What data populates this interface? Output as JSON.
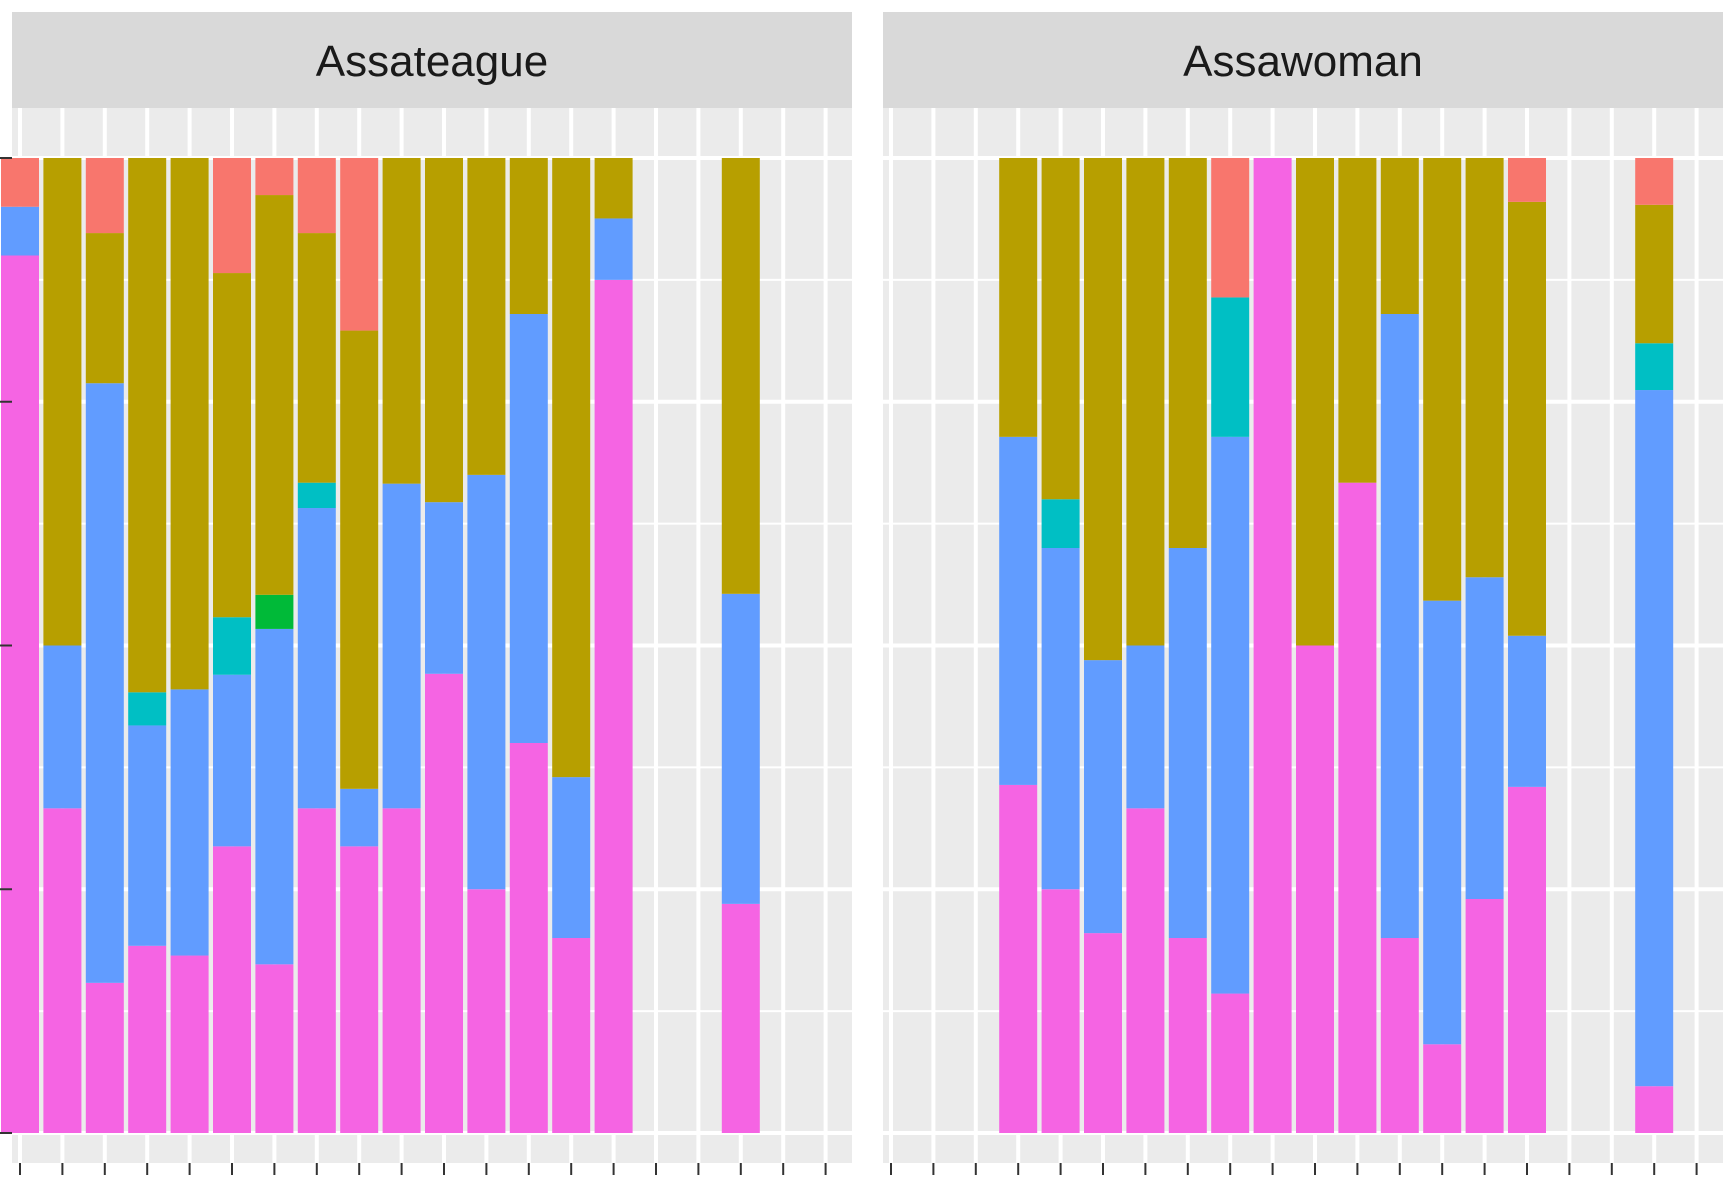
{
  "chart_data": {
    "type": "bar",
    "stacked": true,
    "orientation": "vertical",
    "facets": [
      "Assateague",
      "Assawoman"
    ],
    "segment_order_bottom_to_top": [
      "magenta",
      "blue",
      "cyan",
      "green",
      "olive",
      "red"
    ],
    "colors": {
      "red": "#F8766D",
      "olive": "#B79F00",
      "green": "#00BA38",
      "cyan": "#00BFC4",
      "blue": "#619CFF",
      "magenta": "#F564E3"
    },
    "ylim": [
      0,
      1
    ],
    "grid": true,
    "legend": "none",
    "x_ticks": 20,
    "panels": [
      {
        "title": "Assateague",
        "bars": [
          {
            "slot": 1,
            "magenta": 0.9,
            "blue": 0.05,
            "cyan": 0,
            "green": 0,
            "olive": 0,
            "red": 0.05
          },
          {
            "slot": 2,
            "magenta": 0.333,
            "blue": 0.167,
            "cyan": 0,
            "green": 0,
            "olive": 0.5,
            "red": 0
          },
          {
            "slot": 3,
            "magenta": 0.154,
            "blue": 0.615,
            "cyan": 0,
            "green": 0,
            "olive": 0.154,
            "red": 0.077
          },
          {
            "slot": 4,
            "magenta": 0.192,
            "blue": 0.226,
            "cyan": 0.034,
            "green": 0,
            "olive": 0.548,
            "red": 0
          },
          {
            "slot": 5,
            "magenta": 0.182,
            "blue": 0.273,
            "cyan": 0,
            "green": 0,
            "olive": 0.545,
            "red": 0
          },
          {
            "slot": 6,
            "magenta": 0.294,
            "blue": 0.176,
            "cyan": 0.059,
            "green": 0,
            "olive": 0.353,
            "red": 0.118
          },
          {
            "slot": 7,
            "magenta": 0.173,
            "blue": 0.344,
            "cyan": 0,
            "green": 0.035,
            "olive": 0.41,
            "red": 0.038
          },
          {
            "slot": 8,
            "magenta": 0.333,
            "blue": 0.308,
            "cyan": 0.026,
            "green": 0,
            "olive": 0.256,
            "red": 0.077
          },
          {
            "slot": 9,
            "magenta": 0.294,
            "blue": 0.059,
            "cyan": 0,
            "green": 0,
            "olive": 0.47,
            "red": 0.177
          },
          {
            "slot": 10,
            "magenta": 0.333,
            "blue": 0.333,
            "cyan": 0,
            "green": 0,
            "olive": 0.334,
            "red": 0
          },
          {
            "slot": 11,
            "magenta": 0.471,
            "blue": 0.176,
            "cyan": 0,
            "green": 0,
            "olive": 0.353,
            "red": 0
          },
          {
            "slot": 12,
            "magenta": 0.25,
            "blue": 0.425,
            "cyan": 0,
            "green": 0,
            "olive": 0.325,
            "red": 0
          },
          {
            "slot": 13,
            "magenta": 0.4,
            "blue": 0.44,
            "cyan": 0,
            "green": 0,
            "olive": 0.16,
            "red": 0
          },
          {
            "slot": 14,
            "magenta": 0.2,
            "blue": 0.165,
            "cyan": 0,
            "green": 0,
            "olive": 0.635,
            "red": 0
          },
          {
            "slot": 15,
            "magenta": 0.875,
            "blue": 0.063,
            "cyan": 0,
            "green": 0,
            "olive": 0.062,
            "red": 0
          },
          {
            "slot": 18,
            "magenta": 0.235,
            "blue": 0.318,
            "cyan": 0,
            "green": 0,
            "olive": 0.447,
            "red": 0
          }
        ]
      },
      {
        "title": "Assawoman",
        "bars": [
          {
            "slot": 4,
            "magenta": 0.357,
            "blue": 0.357,
            "cyan": 0,
            "green": 0,
            "olive": 0.286,
            "red": 0
          },
          {
            "slot": 5,
            "magenta": 0.25,
            "blue": 0.35,
            "cyan": 0.05,
            "green": 0,
            "olive": 0.35,
            "red": 0
          },
          {
            "slot": 6,
            "magenta": 0.205,
            "blue": 0.28,
            "cyan": 0,
            "green": 0,
            "olive": 0.515,
            "red": 0
          },
          {
            "slot": 7,
            "magenta": 0.333,
            "blue": 0.167,
            "cyan": 0,
            "green": 0,
            "olive": 0.5,
            "red": 0
          },
          {
            "slot": 8,
            "magenta": 0.2,
            "blue": 0.4,
            "cyan": 0,
            "green": 0,
            "olive": 0.4,
            "red": 0
          },
          {
            "slot": 9,
            "magenta": 0.143,
            "blue": 0.571,
            "cyan": 0.143,
            "green": 0,
            "olive": 0,
            "red": 0.143
          },
          {
            "slot": 10,
            "magenta": 1.0,
            "blue": 0,
            "cyan": 0,
            "green": 0,
            "olive": 0,
            "red": 0
          },
          {
            "slot": 11,
            "magenta": 0.5,
            "blue": 0,
            "cyan": 0,
            "green": 0,
            "olive": 0.5,
            "red": 0
          },
          {
            "slot": 12,
            "magenta": 0.667,
            "blue": 0,
            "cyan": 0,
            "green": 0,
            "olive": 0.333,
            "red": 0
          },
          {
            "slot": 13,
            "magenta": 0.2,
            "blue": 0.64,
            "cyan": 0,
            "green": 0,
            "olive": 0.16,
            "red": 0
          },
          {
            "slot": 14,
            "magenta": 0.091,
            "blue": 0.455,
            "cyan": 0,
            "green": 0,
            "olive": 0.454,
            "red": 0
          },
          {
            "slot": 15,
            "magenta": 0.24,
            "blue": 0.33,
            "cyan": 0,
            "green": 0,
            "olive": 0.43,
            "red": 0
          },
          {
            "slot": 16,
            "magenta": 0.355,
            "blue": 0.155,
            "cyan": 0,
            "green": 0,
            "olive": 0.445,
            "red": 0.045
          },
          {
            "slot": 19,
            "magenta": 0.048,
            "blue": 0.714,
            "cyan": 0.048,
            "green": 0,
            "olive": 0.142,
            "red": 0.048
          }
        ]
      }
    ]
  }
}
